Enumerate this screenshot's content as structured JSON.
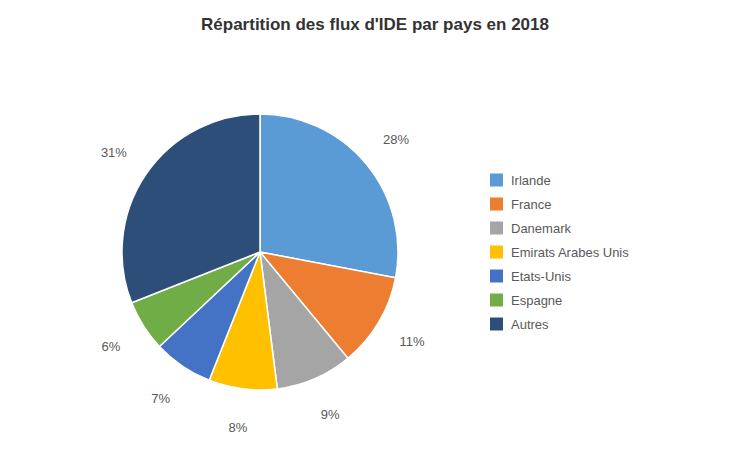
{
  "chart_data": {
    "type": "pie",
    "title": "Répartition des flux d'IDE par pays en 2018",
    "categories": [
      "Irlande",
      "France",
      "Danemark",
      "Emirats Arabes Unis",
      "Etats-Unis",
      "Espagne",
      "Autres"
    ],
    "values": [
      28,
      11,
      9,
      8,
      7,
      6,
      31
    ],
    "value_labels": [
      "28%",
      "11%",
      "9%",
      "8%",
      "7%",
      "6%",
      "31%"
    ],
    "colors": [
      "#5B9BD5",
      "#ED7D31",
      "#A5A5A5",
      "#FFC000",
      "#4472C4",
      "#70AD47",
      "#2E4E7A"
    ],
    "data_labels": true,
    "legend": "right"
  }
}
